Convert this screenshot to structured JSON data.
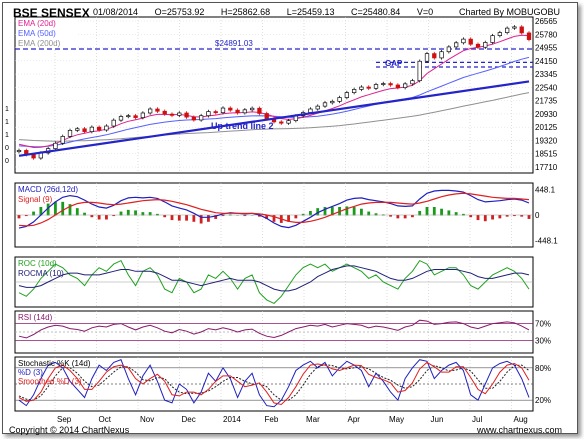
{
  "header": {
    "title": "BSE SENSEX",
    "date": "01/08/2014",
    "open": "O=25753.92",
    "high": "H=25862.68",
    "low": "L=25459.13",
    "close": "C=25480.84",
    "volume": "V=0",
    "charted_by": "Charted By MOBUGOBU"
  },
  "footer": {
    "copyright": "Copyright © 2014 ChartNexus",
    "site": "www.chartnexus.com"
  },
  "colors": {
    "ema20": "#e0208f",
    "ema50": "#5560ff",
    "ema200": "#909090",
    "trend": "#2424c8",
    "gap": "#2424c8",
    "macd": "#2020c0",
    "signal": "#e02020",
    "roc": "#1fa01f",
    "rocma": "#20207a",
    "rsi": "#8a1a6a",
    "stoch_k": "#2020c0",
    "stoch_d": "#e02020"
  },
  "x_labels": [
    "Sep",
    "Oct",
    "Nov",
    "Dec",
    "2014",
    "Feb",
    "Mar",
    "Apr",
    "May",
    "Jun",
    "Jul",
    "Aug"
  ],
  "chart_data": [
    {
      "type": "candlestick",
      "panel": "price",
      "legend": [
        "EMA (20d)",
        "EMA (50d)",
        "EMA (200d)"
      ],
      "y_ticks": [
        "26565",
        "25780",
        "24955",
        "24150",
        "23345",
        "22540",
        "21735",
        "20930",
        "20125",
        "19320",
        "18515",
        "17710"
      ],
      "left_ticks": [
        "1",
        "1",
        "1",
        "0",
        "0"
      ],
      "annotations": [
        "$24891.03",
        "GAP",
        "Up trend line 2"
      ],
      "ylim": [
        17100,
        26900
      ],
      "close_series": [
        18519,
        18250,
        18040,
        18360,
        18630,
        18970,
        19400,
        19780,
        19880,
        19700,
        19980,
        19800,
        20050,
        20420,
        20650,
        20700,
        20580,
        20870,
        21120,
        20980,
        20800,
        20720,
        20870,
        20610,
        20430,
        20700,
        20960,
        20890,
        21180,
        21050,
        20880,
        21070,
        21170,
        20840,
        20510,
        20310,
        20230,
        20390,
        20690,
        20900,
        21120,
        21300,
        21510,
        21600,
        21840,
        22150,
        22350,
        22500,
        22420,
        22660,
        22720,
        22630,
        22460,
        22700,
        22900,
        24120,
        24600,
        24330,
        24720,
        25020,
        25280,
        25510,
        25190,
        25000,
        25300,
        25730,
        25920,
        26200,
        26280,
        25900,
        25480
      ],
      "ema20": [
        18900,
        18800,
        18700,
        18720,
        18800,
        18950,
        19150,
        19350,
        19500,
        19600,
        19700,
        19750,
        19850,
        20000,
        20200,
        20350,
        20450,
        20550,
        20700,
        20780,
        20780,
        20760,
        20780,
        20720,
        20630,
        20620,
        20690,
        20740,
        20820,
        20870,
        20880,
        20900,
        20940,
        20900,
        20780,
        20650,
        20520,
        20470,
        20510,
        20600,
        20720,
        20860,
        21000,
        21150,
        21320,
        21520,
        21700,
        21880,
        22020,
        22160,
        22290,
        22400,
        22440,
        22500,
        22600,
        22900,
        23350,
        23650,
        23950,
        24250,
        24520,
        24780,
        24920,
        25000,
        25080,
        25200,
        25350,
        25520,
        25680,
        25750,
        25730
      ],
      "ema50": [
        18800,
        18780,
        18760,
        18750,
        18780,
        18840,
        18930,
        19040,
        19150,
        19240,
        19330,
        19410,
        19500,
        19610,
        19730,
        19850,
        19950,
        20050,
        20150,
        20230,
        20300,
        20350,
        20400,
        20430,
        20450,
        20460,
        20490,
        20520,
        20560,
        20600,
        20630,
        20660,
        20690,
        20700,
        20690,
        20660,
        20630,
        20600,
        20590,
        20600,
        20630,
        20670,
        20730,
        20800,
        20880,
        20980,
        21090,
        21200,
        21310,
        21420,
        21520,
        21610,
        21690,
        21760,
        21840,
        22000,
        22200,
        22380,
        22560,
        22740,
        22920,
        23100,
        23240,
        23370,
        23500,
        23640,
        23790,
        23950,
        24110,
        24250,
        24360
      ],
      "ema200": [
        19200,
        19170,
        19140,
        19120,
        19110,
        19100,
        19100,
        19110,
        19120,
        19130,
        19150,
        19170,
        19190,
        19220,
        19250,
        19290,
        19330,
        19370,
        19410,
        19450,
        19490,
        19520,
        19550,
        19580,
        19600,
        19620,
        19640,
        19670,
        19700,
        19730,
        19760,
        19790,
        19820,
        19840,
        19860,
        19870,
        19880,
        19890,
        19900,
        19920,
        19940,
        19970,
        20000,
        20040,
        20080,
        20130,
        20180,
        20240,
        20300,
        20360,
        20420,
        20480,
        20540,
        20600,
        20660,
        20740,
        20830,
        20920,
        21010,
        21100,
        21200,
        21300,
        21390,
        21480,
        21570,
        21660,
        21760,
        21860,
        21960,
        22060,
        22150
      ],
      "trend_line": [
        [
          0,
          18180
        ],
        [
          70,
          22850
        ]
      ],
      "horizontal_level": 24891.03,
      "gap_band": [
        23760,
        24050
      ]
    },
    {
      "type": "line",
      "panel": "macd",
      "legend": [
        "MACD (26d,12d)",
        "Signal (9)"
      ],
      "y_ticks": [
        "448.1",
        "0",
        "-448.1"
      ],
      "ylim": [
        -560,
        560
      ],
      "macd": [
        -230,
        -200,
        -120,
        0,
        120,
        230,
        310,
        340,
        320,
        260,
        190,
        140,
        120,
        170,
        250,
        300,
        310,
        300,
        310,
        290,
        230,
        160,
        120,
        90,
        30,
        -40,
        -40,
        -20,
        20,
        40,
        30,
        20,
        30,
        0,
        -60,
        -140,
        -200,
        -220,
        -180,
        -110,
        -40,
        40,
        100,
        150,
        200,
        260,
        290,
        300,
        270,
        250,
        230,
        200,
        160,
        150,
        160,
        280,
        380,
        420,
        430,
        430,
        420,
        400,
        340,
        270,
        230,
        240,
        250,
        270,
        280,
        260,
        210
      ],
      "signal": [
        -180,
        -190,
        -180,
        -140,
        -80,
        0,
        80,
        150,
        200,
        220,
        220,
        210,
        190,
        180,
        190,
        210,
        230,
        250,
        260,
        270,
        260,
        240,
        210,
        180,
        140,
        100,
        70,
        40,
        30,
        30,
        30,
        30,
        30,
        20,
        0,
        -30,
        -70,
        -110,
        -130,
        -130,
        -110,
        -80,
        -40,
        10,
        60,
        110,
        150,
        190,
        210,
        220,
        220,
        220,
        210,
        200,
        190,
        210,
        240,
        280,
        320,
        350,
        370,
        380,
        370,
        350,
        330,
        310,
        300,
        290,
        290,
        280,
        270
      ]
    },
    {
      "type": "line",
      "panel": "roc",
      "legend": [
        "ROC (10d)",
        "ROCMA (10)"
      ],
      "ylim": [
        -7,
        7
      ],
      "roc": [
        -3,
        -4,
        -2,
        1,
        3,
        5,
        4,
        2,
        1,
        -1,
        2,
        4,
        3,
        5,
        6,
        2,
        -1,
        3,
        4,
        2,
        -2,
        -3,
        1,
        0,
        -3,
        -2,
        2,
        1,
        3,
        1,
        -2,
        1,
        2,
        -3,
        -5,
        -6,
        -4,
        -1,
        2,
        4,
        5,
        4,
        5,
        3,
        4,
        5,
        4,
        3,
        1,
        2,
        0,
        -1,
        -2,
        1,
        3,
        6,
        5,
        2,
        3,
        4,
        4,
        2,
        -1,
        -2,
        0,
        2,
        3,
        4,
        3,
        1,
        -2
      ],
      "rocma": [
        -1,
        -1.5,
        -1.5,
        -1,
        0,
        1,
        2,
        2.5,
        2.5,
        2,
        2,
        2,
        2.5,
        3,
        3.5,
        3.5,
        3,
        3,
        3,
        2.5,
        1.5,
        0.5,
        0.5,
        0,
        -0.5,
        -1,
        -0.5,
        0,
        0.5,
        1,
        0.5,
        0.5,
        0.5,
        0,
        -1,
        -2,
        -2.5,
        -2.5,
        -2,
        -1,
        0,
        1.5,
        2.5,
        3.5,
        4,
        4.5,
        4.5,
        4,
        3.5,
        3,
        2,
        1,
        0.5,
        0.5,
        1,
        2,
        3,
        3.5,
        3.5,
        3.5,
        3.5,
        3,
        2.5,
        1.5,
        1,
        1,
        1.5,
        2,
        2.5,
        2.5,
        2
      ]
    },
    {
      "type": "line",
      "panel": "rsi",
      "legend": [
        "RSI (14d)"
      ],
      "y_ticks": [
        "70%",
        "30%"
      ],
      "ylim": [
        0,
        100
      ],
      "levels": [
        70,
        50,
        30
      ],
      "rsi": [
        40,
        36,
        44,
        55,
        62,
        66,
        64,
        58,
        56,
        52,
        60,
        64,
        62,
        68,
        70,
        62,
        55,
        62,
        66,
        60,
        52,
        48,
        56,
        52,
        45,
        50,
        58,
        55,
        60,
        56,
        50,
        55,
        57,
        47,
        40,
        37,
        42,
        50,
        58,
        62,
        66,
        64,
        68,
        62,
        66,
        70,
        68,
        66,
        60,
        64,
        62,
        58,
        54,
        62,
        66,
        78,
        76,
        68,
        70,
        73,
        74,
        70,
        62,
        58,
        64,
        70,
        72,
        74,
        72,
        64,
        55
      ]
    },
    {
      "type": "line",
      "panel": "stochastic",
      "legend": [
        "Stochastic %K (14d)",
        "%D (3)",
        "Smoothed %D (3)"
      ],
      "y_ticks": [
        "80%",
        "20%"
      ],
      "ylim": [
        0,
        100
      ],
      "levels": [
        80,
        50,
        20
      ],
      "k": [
        20,
        10,
        30,
        60,
        85,
        90,
        80,
        55,
        40,
        25,
        60,
        85,
        75,
        90,
        95,
        60,
        30,
        65,
        85,
        55,
        20,
        15,
        50,
        40,
        15,
        35,
        70,
        55,
        80,
        60,
        25,
        55,
        70,
        30,
        10,
        8,
        20,
        45,
        75,
        85,
        92,
        80,
        90,
        65,
        80,
        92,
        85,
        75,
        45,
        70,
        55,
        35,
        20,
        60,
        80,
        95,
        92,
        60,
        75,
        85,
        90,
        75,
        30,
        20,
        50,
        80,
        88,
        92,
        85,
        60,
        25
      ],
      "d": [
        25,
        18,
        20,
        35,
        60,
        80,
        85,
        75,
        60,
        40,
        40,
        55,
        72,
        82,
        85,
        80,
        60,
        50,
        60,
        68,
        55,
        30,
        28,
        35,
        35,
        30,
        40,
        55,
        65,
        65,
        55,
        45,
        48,
        52,
        35,
        15,
        12,
        25,
        45,
        68,
        85,
        87,
        85,
        78,
        75,
        80,
        85,
        84,
        68,
        62,
        58,
        52,
        35,
        38,
        52,
        78,
        90,
        82,
        72,
        72,
        82,
        82,
        62,
        40,
        32,
        50,
        72,
        85,
        88,
        80,
        57
      ],
      "smoothed_d": [
        28,
        22,
        20,
        28,
        45,
        65,
        80,
        80,
        70,
        55,
        45,
        48,
        60,
        72,
        82,
        82,
        72,
        58,
        56,
        62,
        60,
        45,
        35,
        32,
        33,
        33,
        37,
        45,
        55,
        62,
        62,
        55,
        50,
        50,
        45,
        30,
        20,
        20,
        30,
        48,
        68,
        82,
        86,
        84,
        80,
        78,
        80,
        82,
        78,
        70,
        62,
        57,
        48,
        42,
        45,
        58,
        75,
        84,
        80,
        74,
        76,
        80,
        74,
        58,
        42,
        42,
        55,
        72,
        84,
        85,
        75
      ]
    }
  ]
}
